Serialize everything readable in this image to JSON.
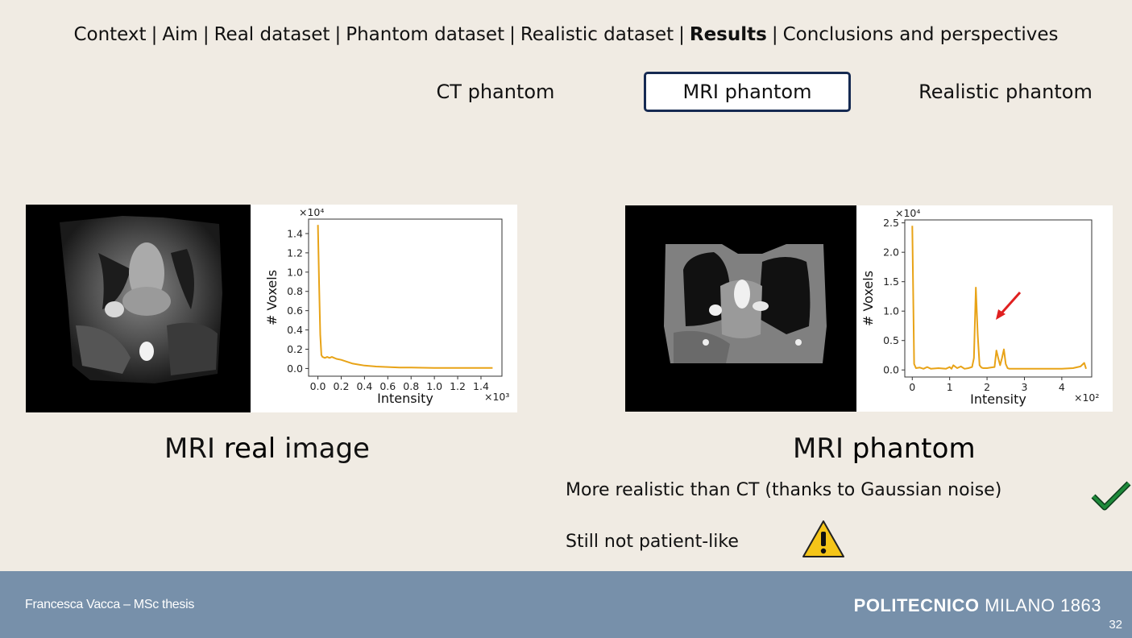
{
  "nav": {
    "items": [
      {
        "label": "Context",
        "active": false
      },
      {
        "label": "Aim",
        "active": false
      },
      {
        "label": "Real dataset",
        "active": false
      },
      {
        "label": "Phantom dataset",
        "active": false
      },
      {
        "label": "Realistic dataset",
        "active": false
      },
      {
        "label": "Results",
        "active": true
      },
      {
        "label": "Conclusions and perspectives",
        "active": false
      }
    ],
    "separator": "|"
  },
  "subtabs": {
    "ct": "CT phantom",
    "mri": "MRI phantom",
    "realistic": "Realistic phantom",
    "active": "mri"
  },
  "left": {
    "caption_pre": "MRI ",
    "caption_bold": "real",
    "caption_post": " image"
  },
  "right": {
    "caption_pre": "MRI ",
    "caption_bold": "phantom",
    "bullet1": "More realistic than CT (thanks to Gaussian noise)",
    "bullet2": "Still not patient-like"
  },
  "icons": {
    "check": "check-icon",
    "warning": "warning-icon",
    "arrow": "red-arrow-icon"
  },
  "colors": {
    "background": "#f0ebe3",
    "footer": "#7790aa",
    "line": "#e8a317",
    "active_border": "#162a52",
    "check": "#1f8a3b",
    "warning": "#f5c518",
    "arrow": "#e02020"
  },
  "footer": {
    "author": "Francesca Vacca – MSc thesis",
    "brand_bold": "POLITECNICO",
    "brand_rest": " MILANO 1863",
    "page": "32"
  },
  "chart_data": [
    {
      "type": "line",
      "ylabel": "# Voxels",
      "xlabel": "Intensity",
      "y_multiplier": "×10⁴",
      "x_multiplier": "×10³",
      "xlim": [
        -0.08,
        1.58
      ],
      "ylim": [
        -0.08,
        1.55
      ],
      "xticks": [
        "0.0",
        "0.2",
        "0.4",
        "0.6",
        "0.8",
        "1.0",
        "1.2",
        "1.4"
      ],
      "yticks": [
        "0.0",
        "0.2",
        "0.4",
        "0.6",
        "0.8",
        "1.0",
        "1.2",
        "1.4"
      ],
      "xtick_values": [
        0,
        0.2,
        0.4,
        0.6,
        0.8,
        1.0,
        1.2,
        1.4
      ],
      "ytick_values": [
        0,
        0.2,
        0.4,
        0.6,
        0.8,
        1.0,
        1.2,
        1.4
      ],
      "x": [
        0.0,
        0.01,
        0.02,
        0.03,
        0.04,
        0.06,
        0.08,
        0.1,
        0.12,
        0.14,
        0.16,
        0.2,
        0.25,
        0.3,
        0.35,
        0.4,
        0.5,
        0.6,
        0.7,
        0.8,
        1.0,
        1.2,
        1.4,
        1.5
      ],
      "y": [
        1.49,
        0.9,
        0.35,
        0.14,
        0.12,
        0.11,
        0.12,
        0.11,
        0.12,
        0.11,
        0.1,
        0.09,
        0.07,
        0.05,
        0.04,
        0.03,
        0.02,
        0.015,
        0.01,
        0.01,
        0.005,
        0.005,
        0.005,
        0.005
      ]
    },
    {
      "type": "line",
      "ylabel": "# Voxels",
      "xlabel": "Intensity",
      "y_multiplier": "×10⁴",
      "x_multiplier": "×10²",
      "xlim": [
        -0.2,
        4.8
      ],
      "ylim": [
        -0.12,
        2.55
      ],
      "xticks": [
        "0",
        "1",
        "2",
        "3",
        "4"
      ],
      "yticks": [
        "0.0",
        "0.5",
        "1.0",
        "1.5",
        "2.0",
        "2.5"
      ],
      "xtick_values": [
        0,
        1,
        2,
        3,
        4
      ],
      "ytick_values": [
        0,
        0.5,
        1.0,
        1.5,
        2.0,
        2.5
      ],
      "x": [
        0.0,
        0.05,
        0.1,
        0.2,
        0.3,
        0.4,
        0.5,
        0.7,
        0.9,
        1.0,
        1.05,
        1.1,
        1.2,
        1.3,
        1.4,
        1.5,
        1.6,
        1.65,
        1.7,
        1.75,
        1.8,
        1.85,
        1.9,
        2.0,
        2.1,
        2.2,
        2.25,
        2.3,
        2.35,
        2.4,
        2.45,
        2.5,
        2.55,
        2.6,
        2.8,
        3.0,
        3.5,
        4.0,
        4.3,
        4.5,
        4.6,
        4.65
      ],
      "y": [
        2.45,
        0.1,
        0.03,
        0.04,
        0.02,
        0.05,
        0.02,
        0.03,
        0.02,
        0.05,
        0.02,
        0.08,
        0.03,
        0.06,
        0.02,
        0.03,
        0.05,
        0.2,
        1.4,
        0.6,
        0.08,
        0.04,
        0.03,
        0.03,
        0.04,
        0.05,
        0.33,
        0.2,
        0.08,
        0.2,
        0.35,
        0.1,
        0.03,
        0.02,
        0.02,
        0.02,
        0.02,
        0.02,
        0.03,
        0.06,
        0.12,
        0.02
      ]
    }
  ]
}
